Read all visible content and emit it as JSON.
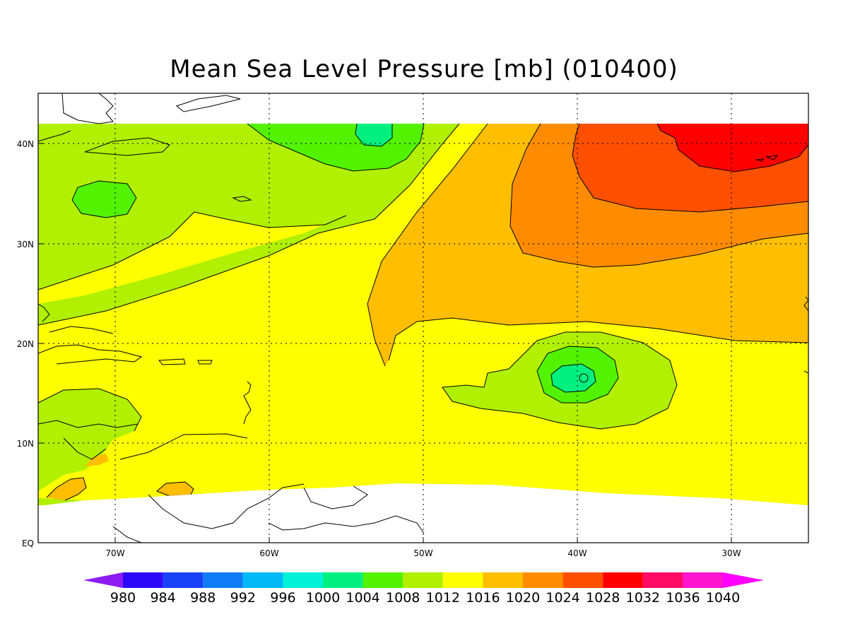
{
  "title": "Mean Sea Level Pressure [mb] (010400)",
  "axes": {
    "lon_labels": [
      "70W",
      "60W",
      "50W",
      "40W",
      "30W"
    ],
    "lat_labels": [
      "EQ",
      "10N",
      "20N",
      "30N",
      "40N"
    ]
  },
  "colorbar": {
    "levels": [
      "980",
      "984",
      "988",
      "992",
      "996",
      "1000",
      "1004",
      "1008",
      "1012",
      "1016",
      "1020",
      "1024",
      "1028",
      "1032",
      "1036",
      "1040"
    ],
    "colors": [
      "#8c1cf0",
      "#2d0af7",
      "#1942f7",
      "#0f7bf5",
      "#00b8f5",
      "#00f0d8",
      "#00f080",
      "#52f200",
      "#b0f000",
      "#ffff00",
      "#ffbe00",
      "#ff8c00",
      "#ff4f00",
      "#ff0000",
      "#ff0a64",
      "#ff14d0",
      "#ff00ff"
    ]
  },
  "colors": {
    "c1008": "#52f200",
    "c1004": "#00f080",
    "c1012": "#b0f000",
    "c1016": "#ffff00",
    "c1020": "#ffbe00",
    "c1024": "#ff8c00",
    "c1028": "#ff4f00",
    "c1032": "#ff0000"
  }
}
